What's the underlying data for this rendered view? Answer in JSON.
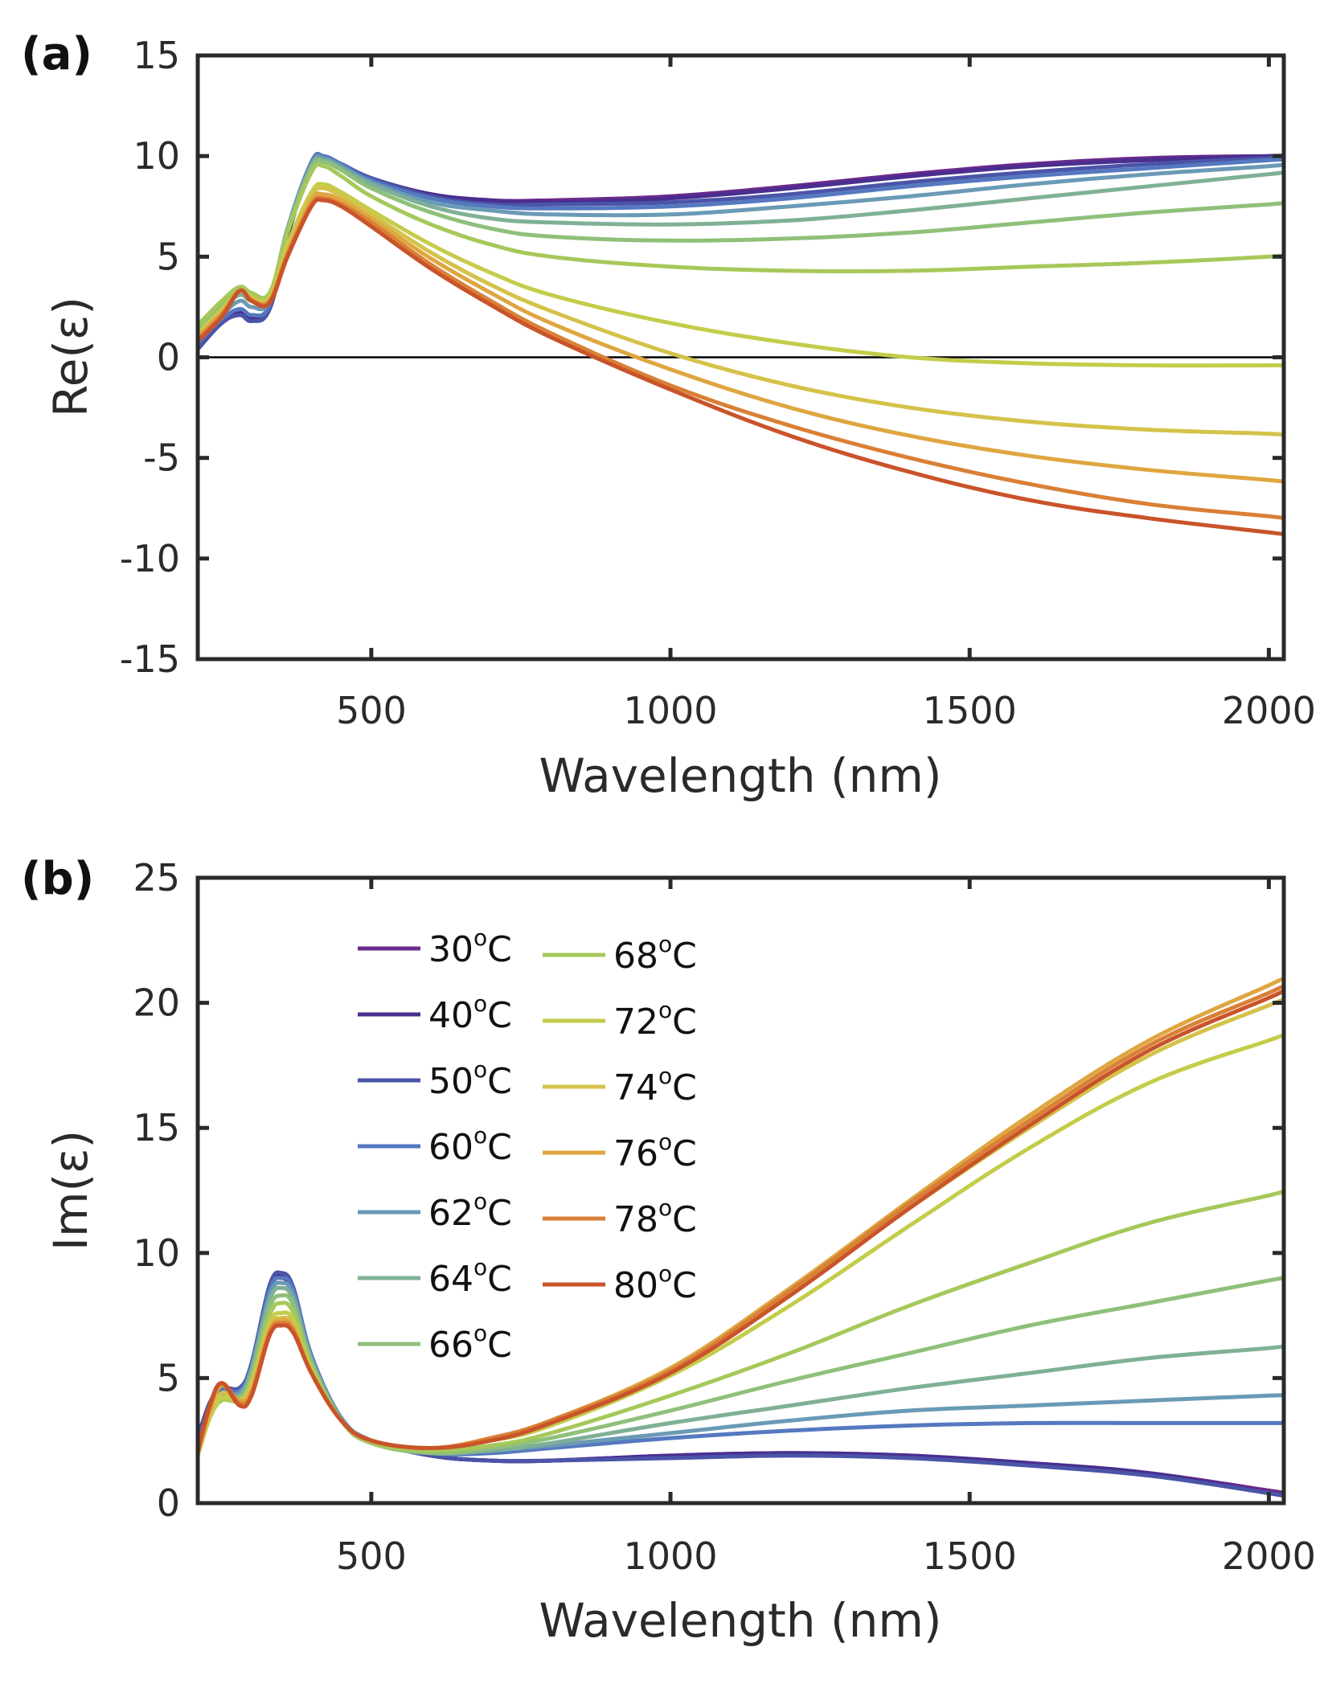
{
  "chart_data": [
    {
      "type": "line",
      "panel_label": "(a)",
      "title": "",
      "xlabel": "Wavelength (nm)",
      "ylabel": "Re(ε)",
      "xlim": [
        210,
        2025
      ],
      "ylim": [
        -15,
        15
      ],
      "xticks": [
        500,
        1000,
        1500,
        2000
      ],
      "xtick_labels": [
        "500",
        "1000",
        "1500",
        "2000"
      ],
      "yticks": [
        -15,
        -10,
        -5,
        0,
        5,
        10,
        15
      ],
      "ytick_labels": [
        "-15",
        "-10",
        "-5",
        "0",
        "5",
        "10",
        "15"
      ],
      "grid": false,
      "zero_line": 0,
      "legend": null,
      "x": [
        210,
        250,
        280,
        300,
        330,
        360,
        400,
        420,
        450,
        500,
        600,
        700,
        800,
        1000,
        1200,
        1400,
        1600,
        1800,
        2000,
        2025
      ],
      "series": [
        {
          "name": "30°C",
          "color": "#6a2a8c",
          "values": [
            0.6,
            1.8,
            2.2,
            2.0,
            2.4,
            6.0,
            9.6,
            9.9,
            9.6,
            8.9,
            8.1,
            7.8,
            7.8,
            8.0,
            8.5,
            9.1,
            9.6,
            9.9,
            10.0,
            10.0
          ]
        },
        {
          "name": "40°C",
          "color": "#4a2e8f",
          "values": [
            0.5,
            1.7,
            2.2,
            1.9,
            2.4,
            6.0,
            9.6,
            9.9,
            9.6,
            8.9,
            8.1,
            7.8,
            7.7,
            7.9,
            8.4,
            9.0,
            9.5,
            9.8,
            10.0,
            10.0
          ]
        },
        {
          "name": "50°C",
          "color": "#4a55a8",
          "values": [
            0.4,
            1.7,
            2.1,
            1.8,
            2.4,
            6.2,
            9.7,
            10.0,
            9.6,
            8.9,
            8.0,
            7.6,
            7.6,
            7.7,
            8.1,
            8.7,
            9.2,
            9.6,
            9.9,
            9.9
          ]
        },
        {
          "name": "60°C",
          "color": "#5578c0",
          "values": [
            0.7,
            1.9,
            2.4,
            2.1,
            2.6,
            6.4,
            9.7,
            10.0,
            9.6,
            8.8,
            7.9,
            7.5,
            7.4,
            7.5,
            7.9,
            8.5,
            9.0,
            9.4,
            9.8,
            9.8
          ]
        },
        {
          "name": "62°C",
          "color": "#6a9ab5",
          "values": [
            0.9,
            2.1,
            2.8,
            2.5,
            2.8,
            6.4,
            9.6,
            9.9,
            9.5,
            8.7,
            7.7,
            7.3,
            7.1,
            7.1,
            7.5,
            8.0,
            8.6,
            9.1,
            9.5,
            9.6
          ]
        },
        {
          "name": "64°C",
          "color": "#7fb095",
          "values": [
            1.1,
            2.4,
            3.1,
            2.8,
            3.0,
            6.4,
            9.5,
            9.8,
            9.4,
            8.6,
            7.5,
            6.9,
            6.7,
            6.6,
            6.8,
            7.3,
            7.9,
            8.5,
            9.1,
            9.2
          ]
        },
        {
          "name": "66°C",
          "color": "#8fc07a",
          "values": [
            1.3,
            2.6,
            3.3,
            3.0,
            3.1,
            6.3,
            9.4,
            9.7,
            9.3,
            8.4,
            7.2,
            6.4,
            6.0,
            5.8,
            5.9,
            6.2,
            6.7,
            7.2,
            7.6,
            7.7
          ]
        },
        {
          "name": "68°C",
          "color": "#a6c85a",
          "values": [
            1.6,
            2.8,
            3.5,
            3.2,
            3.2,
            6.2,
            9.2,
            9.5,
            9.0,
            8.0,
            6.6,
            5.6,
            5.0,
            4.5,
            4.3,
            4.3,
            4.5,
            4.7,
            5.0,
            5.1
          ]
        },
        {
          "name": "72°C",
          "color": "#c4cc4a",
          "values": [
            1.2,
            2.4,
            3.3,
            3.0,
            3.0,
            5.6,
            8.2,
            8.6,
            8.2,
            7.3,
            5.6,
            4.2,
            3.1,
            1.7,
            0.7,
            0.0,
            -0.3,
            -0.4,
            -0.4,
            -0.4
          ]
        },
        {
          "name": "74°C",
          "color": "#d4c24a",
          "values": [
            1.1,
            2.3,
            3.3,
            2.9,
            2.9,
            5.4,
            8.0,
            8.4,
            8.0,
            7.1,
            5.2,
            3.6,
            2.3,
            0.2,
            -1.4,
            -2.5,
            -3.2,
            -3.6,
            -3.8,
            -3.9
          ]
        },
        {
          "name": "76°C",
          "color": "#dfa640",
          "values": [
            1.0,
            2.2,
            3.3,
            2.9,
            2.8,
            5.2,
            7.8,
            8.1,
            7.8,
            6.9,
            4.9,
            3.2,
            1.7,
            -0.6,
            -2.5,
            -3.9,
            -4.9,
            -5.6,
            -6.1,
            -6.2
          ]
        },
        {
          "name": "78°C",
          "color": "#d98036",
          "values": [
            0.9,
            2.1,
            3.3,
            2.8,
            2.8,
            5.1,
            7.6,
            7.9,
            7.6,
            6.7,
            4.6,
            2.8,
            1.2,
            -1.4,
            -3.4,
            -5.0,
            -6.3,
            -7.3,
            -7.9,
            -8.0
          ]
        },
        {
          "name": "80°C",
          "color": "#c9532a",
          "values": [
            0.8,
            2.0,
            3.3,
            2.8,
            2.7,
            5.0,
            7.5,
            7.8,
            7.5,
            6.5,
            4.4,
            2.6,
            1.0,
            -1.6,
            -3.9,
            -5.7,
            -7.1,
            -8.0,
            -8.7,
            -8.8
          ]
        }
      ]
    },
    {
      "type": "line",
      "panel_label": "(b)",
      "title": "",
      "xlabel": "Wavelength (nm)",
      "ylabel": "Im(ε)",
      "xlim": [
        210,
        2025
      ],
      "ylim": [
        0,
        25
      ],
      "xticks": [
        500,
        1000,
        1500,
        2000
      ],
      "xtick_labels": [
        "500",
        "1000",
        "1500",
        "2000"
      ],
      "yticks": [
        0,
        5,
        10,
        15,
        20,
        25
      ],
      "ytick_labels": [
        "0",
        "5",
        "10",
        "15",
        "20",
        "25"
      ],
      "grid": false,
      "legend": "top-left",
      "x": [
        210,
        230,
        250,
        280,
        300,
        330,
        350,
        370,
        400,
        450,
        500,
        600,
        700,
        800,
        1000,
        1200,
        1400,
        1600,
        1800,
        2000,
        2025
      ],
      "series": [
        {
          "name": "30°C",
          "color": "#6a2a8c",
          "values": [
            2.6,
            4.0,
            4.6,
            4.6,
            5.5,
            8.5,
            9.0,
            8.4,
            5.8,
            3.4,
            2.5,
            1.9,
            1.7,
            1.7,
            1.9,
            2.0,
            1.9,
            1.6,
            1.2,
            0.5,
            0.4
          ]
        },
        {
          "name": "40°C",
          "color": "#4a2e8f",
          "values": [
            2.6,
            4.0,
            4.6,
            4.6,
            5.5,
            8.6,
            9.1,
            8.5,
            5.8,
            3.4,
            2.5,
            1.9,
            1.7,
            1.7,
            1.9,
            2.0,
            1.9,
            1.6,
            1.2,
            0.4,
            0.3
          ]
        },
        {
          "name": "50°C",
          "color": "#4a55a8",
          "values": [
            2.5,
            4.0,
            4.6,
            4.6,
            5.6,
            8.7,
            9.2,
            8.6,
            5.9,
            3.4,
            2.5,
            1.9,
            1.7,
            1.7,
            1.8,
            1.9,
            1.8,
            1.5,
            1.1,
            0.4,
            0.3
          ]
        },
        {
          "name": "60°C",
          "color": "#5578c0",
          "values": [
            2.3,
            3.8,
            4.5,
            4.5,
            5.5,
            8.5,
            9.0,
            8.5,
            5.9,
            3.4,
            2.5,
            2.0,
            2.0,
            2.2,
            2.6,
            2.9,
            3.1,
            3.2,
            3.2,
            3.2,
            3.2
          ]
        },
        {
          "name": "62°C",
          "color": "#6a9ab5",
          "values": [
            2.2,
            3.7,
            4.4,
            4.4,
            5.4,
            8.3,
            8.8,
            8.3,
            5.8,
            3.4,
            2.5,
            2.0,
            2.1,
            2.3,
            2.8,
            3.3,
            3.7,
            3.9,
            4.1,
            4.3,
            4.3
          ]
        },
        {
          "name": "64°C",
          "color": "#7fb095",
          "values": [
            2.1,
            3.6,
            4.3,
            4.3,
            5.3,
            8.1,
            8.6,
            8.1,
            5.7,
            3.3,
            2.4,
            2.0,
            2.1,
            2.4,
            3.2,
            3.9,
            4.6,
            5.2,
            5.8,
            6.2,
            6.3
          ]
        },
        {
          "name": "66°C",
          "color": "#8fc07a",
          "values": [
            2.0,
            3.5,
            4.2,
            4.2,
            5.1,
            7.8,
            8.3,
            7.9,
            5.6,
            3.3,
            2.4,
            2.0,
            2.2,
            2.6,
            3.7,
            4.9,
            6.0,
            7.1,
            8.0,
            8.9,
            9.0
          ]
        },
        {
          "name": "68°C",
          "color": "#a6c85a",
          "values": [
            1.9,
            3.4,
            4.1,
            4.1,
            4.9,
            7.5,
            8.0,
            7.6,
            5.5,
            3.3,
            2.4,
            2.1,
            2.3,
            2.8,
            4.3,
            6.0,
            7.9,
            9.6,
            11.2,
            12.3,
            12.5
          ]
        },
        {
          "name": "72°C",
          "color": "#c4cc4a",
          "values": [
            1.9,
            3.4,
            4.2,
            4.1,
            4.8,
            7.2,
            7.6,
            7.3,
            5.3,
            3.3,
            2.5,
            2.2,
            2.5,
            3.1,
            5.1,
            7.9,
            11.1,
            14.2,
            16.8,
            18.5,
            18.7
          ]
        },
        {
          "name": "74°C",
          "color": "#d4c24a",
          "values": [
            1.9,
            3.5,
            4.4,
            4.1,
            4.7,
            7.0,
            7.4,
            7.1,
            5.2,
            3.3,
            2.5,
            2.2,
            2.6,
            3.3,
            5.3,
            8.4,
            11.8,
            15.0,
            17.9,
            19.9,
            20.1
          ]
        },
        {
          "name": "76°C",
          "color": "#dfa640",
          "values": [
            2.0,
            3.7,
            4.7,
            4.1,
            4.5,
            6.9,
            7.3,
            7.0,
            5.2,
            3.3,
            2.5,
            2.2,
            2.6,
            3.3,
            5.4,
            8.6,
            12.1,
            15.5,
            18.5,
            20.7,
            21.0
          ]
        },
        {
          "name": "78°C",
          "color": "#d98036",
          "values": [
            2.0,
            3.8,
            4.8,
            4.0,
            4.4,
            6.8,
            7.2,
            6.9,
            5.2,
            3.3,
            2.5,
            2.2,
            2.6,
            3.3,
            5.3,
            8.5,
            12.0,
            15.3,
            18.3,
            20.4,
            20.7
          ]
        },
        {
          "name": "80°C",
          "color": "#c9532a",
          "values": [
            2.1,
            3.9,
            4.8,
            3.9,
            4.3,
            6.7,
            7.1,
            6.8,
            5.2,
            3.3,
            2.5,
            2.2,
            2.5,
            3.2,
            5.2,
            8.3,
            11.8,
            15.1,
            18.1,
            20.2,
            20.5
          ]
        }
      ]
    }
  ],
  "legend": {
    "columns": [
      [
        "30°C",
        "40°C",
        "50°C",
        "60°C",
        "62°C",
        "64°C",
        "66°C"
      ],
      [
        "68°C",
        "72°C",
        "74°C",
        "76°C",
        "78°C",
        "80°C"
      ]
    ]
  },
  "axis_color": "#2a2a2a"
}
